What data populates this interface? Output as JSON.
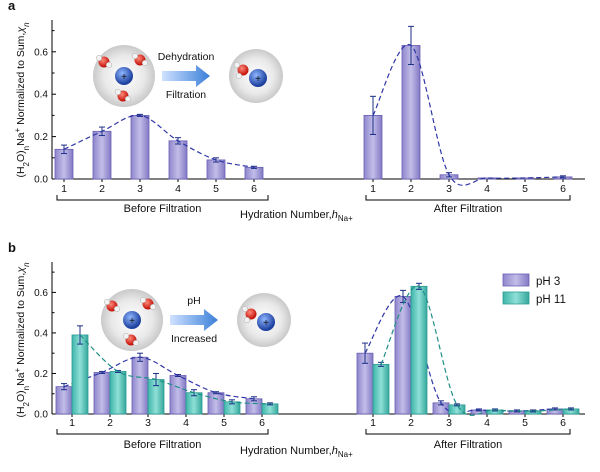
{
  "panels": [
    {
      "label": "a",
      "y_axis_label_html": "(H<tspan baseline-shift='sub' font-size='8'>2</tspan>O)<tspan baseline-shift='sub' font-size='8'>n</tspan>Na<tspan baseline-shift='super' font-size='8'>+</tspan> Normalized to Sum,<tspan font-style='italic'>χ</tspan><tspan baseline-shift='sub' font-size='8' font-style='italic'>n</tspan>",
      "x_axis_label": "Hydration Number,",
      "x_axis_symbol": "h",
      "x_axis_subscript": "Na+",
      "group_labels": [
        "Before Filtration",
        "After Filtration"
      ],
      "inset": {
        "top_text": "Dehydration",
        "bottom_text": "Filtration"
      }
    },
    {
      "label": "b",
      "x_axis_label": "Hydration Number,",
      "x_axis_symbol": "h",
      "x_axis_subscript": "Na+",
      "group_labels": [
        "Before Filtration",
        "After Filtration"
      ],
      "inset": {
        "top_text": "pH",
        "bottom_text": "Increased"
      },
      "legend": [
        "pH 3",
        "pH 11"
      ]
    }
  ],
  "colors": {
    "purple_fill": "#a59ed6",
    "purple_dark": "#6a5fb5",
    "teal_fill": "#5cc7bd",
    "teal_dark": "#2a9c94",
    "fit_purple": "#2f37a6",
    "fit_teal": "#1f8f86",
    "error_bar": "#1c2f88"
  },
  "chart_data": [
    {
      "panel": "a",
      "type": "bar",
      "ylim": [
        0,
        0.75
      ],
      "yticks": [
        "0.0",
        "0.2",
        "0.4",
        "0.6"
      ],
      "groups": [
        {
          "name": "Before Filtration",
          "categories": [
            "1",
            "2",
            "3",
            "4",
            "5",
            "6"
          ],
          "series": [
            {
              "values": [
                0.14,
                0.225,
                0.3,
                0.18,
                0.09,
                0.055
              ],
              "errors": [
                0.02,
                0.02,
                0.005,
                0.015,
                0.01,
                0.005
              ]
            }
          ]
        },
        {
          "name": "After Filtration",
          "categories": [
            "1",
            "2",
            "3",
            "4",
            "5",
            "6"
          ],
          "series": [
            {
              "values": [
                0.3,
                0.63,
                0.02,
                0.005,
                0.005,
                0.01
              ],
              "errors": [
                0.09,
                0.09,
                0.01,
                0.0,
                0.0,
                0.005
              ]
            }
          ]
        }
      ]
    },
    {
      "panel": "b",
      "type": "bar",
      "ylim": [
        0,
        0.75
      ],
      "yticks": [
        "0.0",
        "0.2",
        "0.4",
        "0.6"
      ],
      "legend": [
        "pH 3",
        "pH 11"
      ],
      "groups": [
        {
          "name": "Before Filtration",
          "categories": [
            "1",
            "2",
            "3",
            "4",
            "5",
            "6"
          ],
          "series": [
            {
              "name": "pH 3",
              "values": [
                0.135,
                0.205,
                0.28,
                0.19,
                0.105,
                0.075
              ],
              "errors": [
                0.015,
                0.005,
                0.02,
                0.005,
                0.005,
                0.01
              ]
            },
            {
              "name": "pH 11",
              "values": [
                0.39,
                0.21,
                0.17,
                0.105,
                0.06,
                0.05
              ],
              "errors": [
                0.045,
                0.005,
                0.03,
                0.015,
                0.01,
                0.005
              ]
            }
          ]
        },
        {
          "name": "After Filtration",
          "categories": [
            "1",
            "2",
            "3",
            "4",
            "5",
            "6"
          ],
          "series": [
            {
              "name": "pH 3",
              "values": [
                0.3,
                0.58,
                0.055,
                0.02,
                0.015,
                0.025
              ],
              "errors": [
                0.05,
                0.03,
                0.01,
                0.005,
                0.005,
                0.005
              ]
            },
            {
              "name": "pH 11",
              "values": [
                0.245,
                0.63,
                0.045,
                0.02,
                0.015,
                0.025
              ],
              "errors": [
                0.01,
                0.015,
                0.005,
                0.005,
                0.005,
                0.005
              ]
            }
          ]
        }
      ]
    }
  ]
}
